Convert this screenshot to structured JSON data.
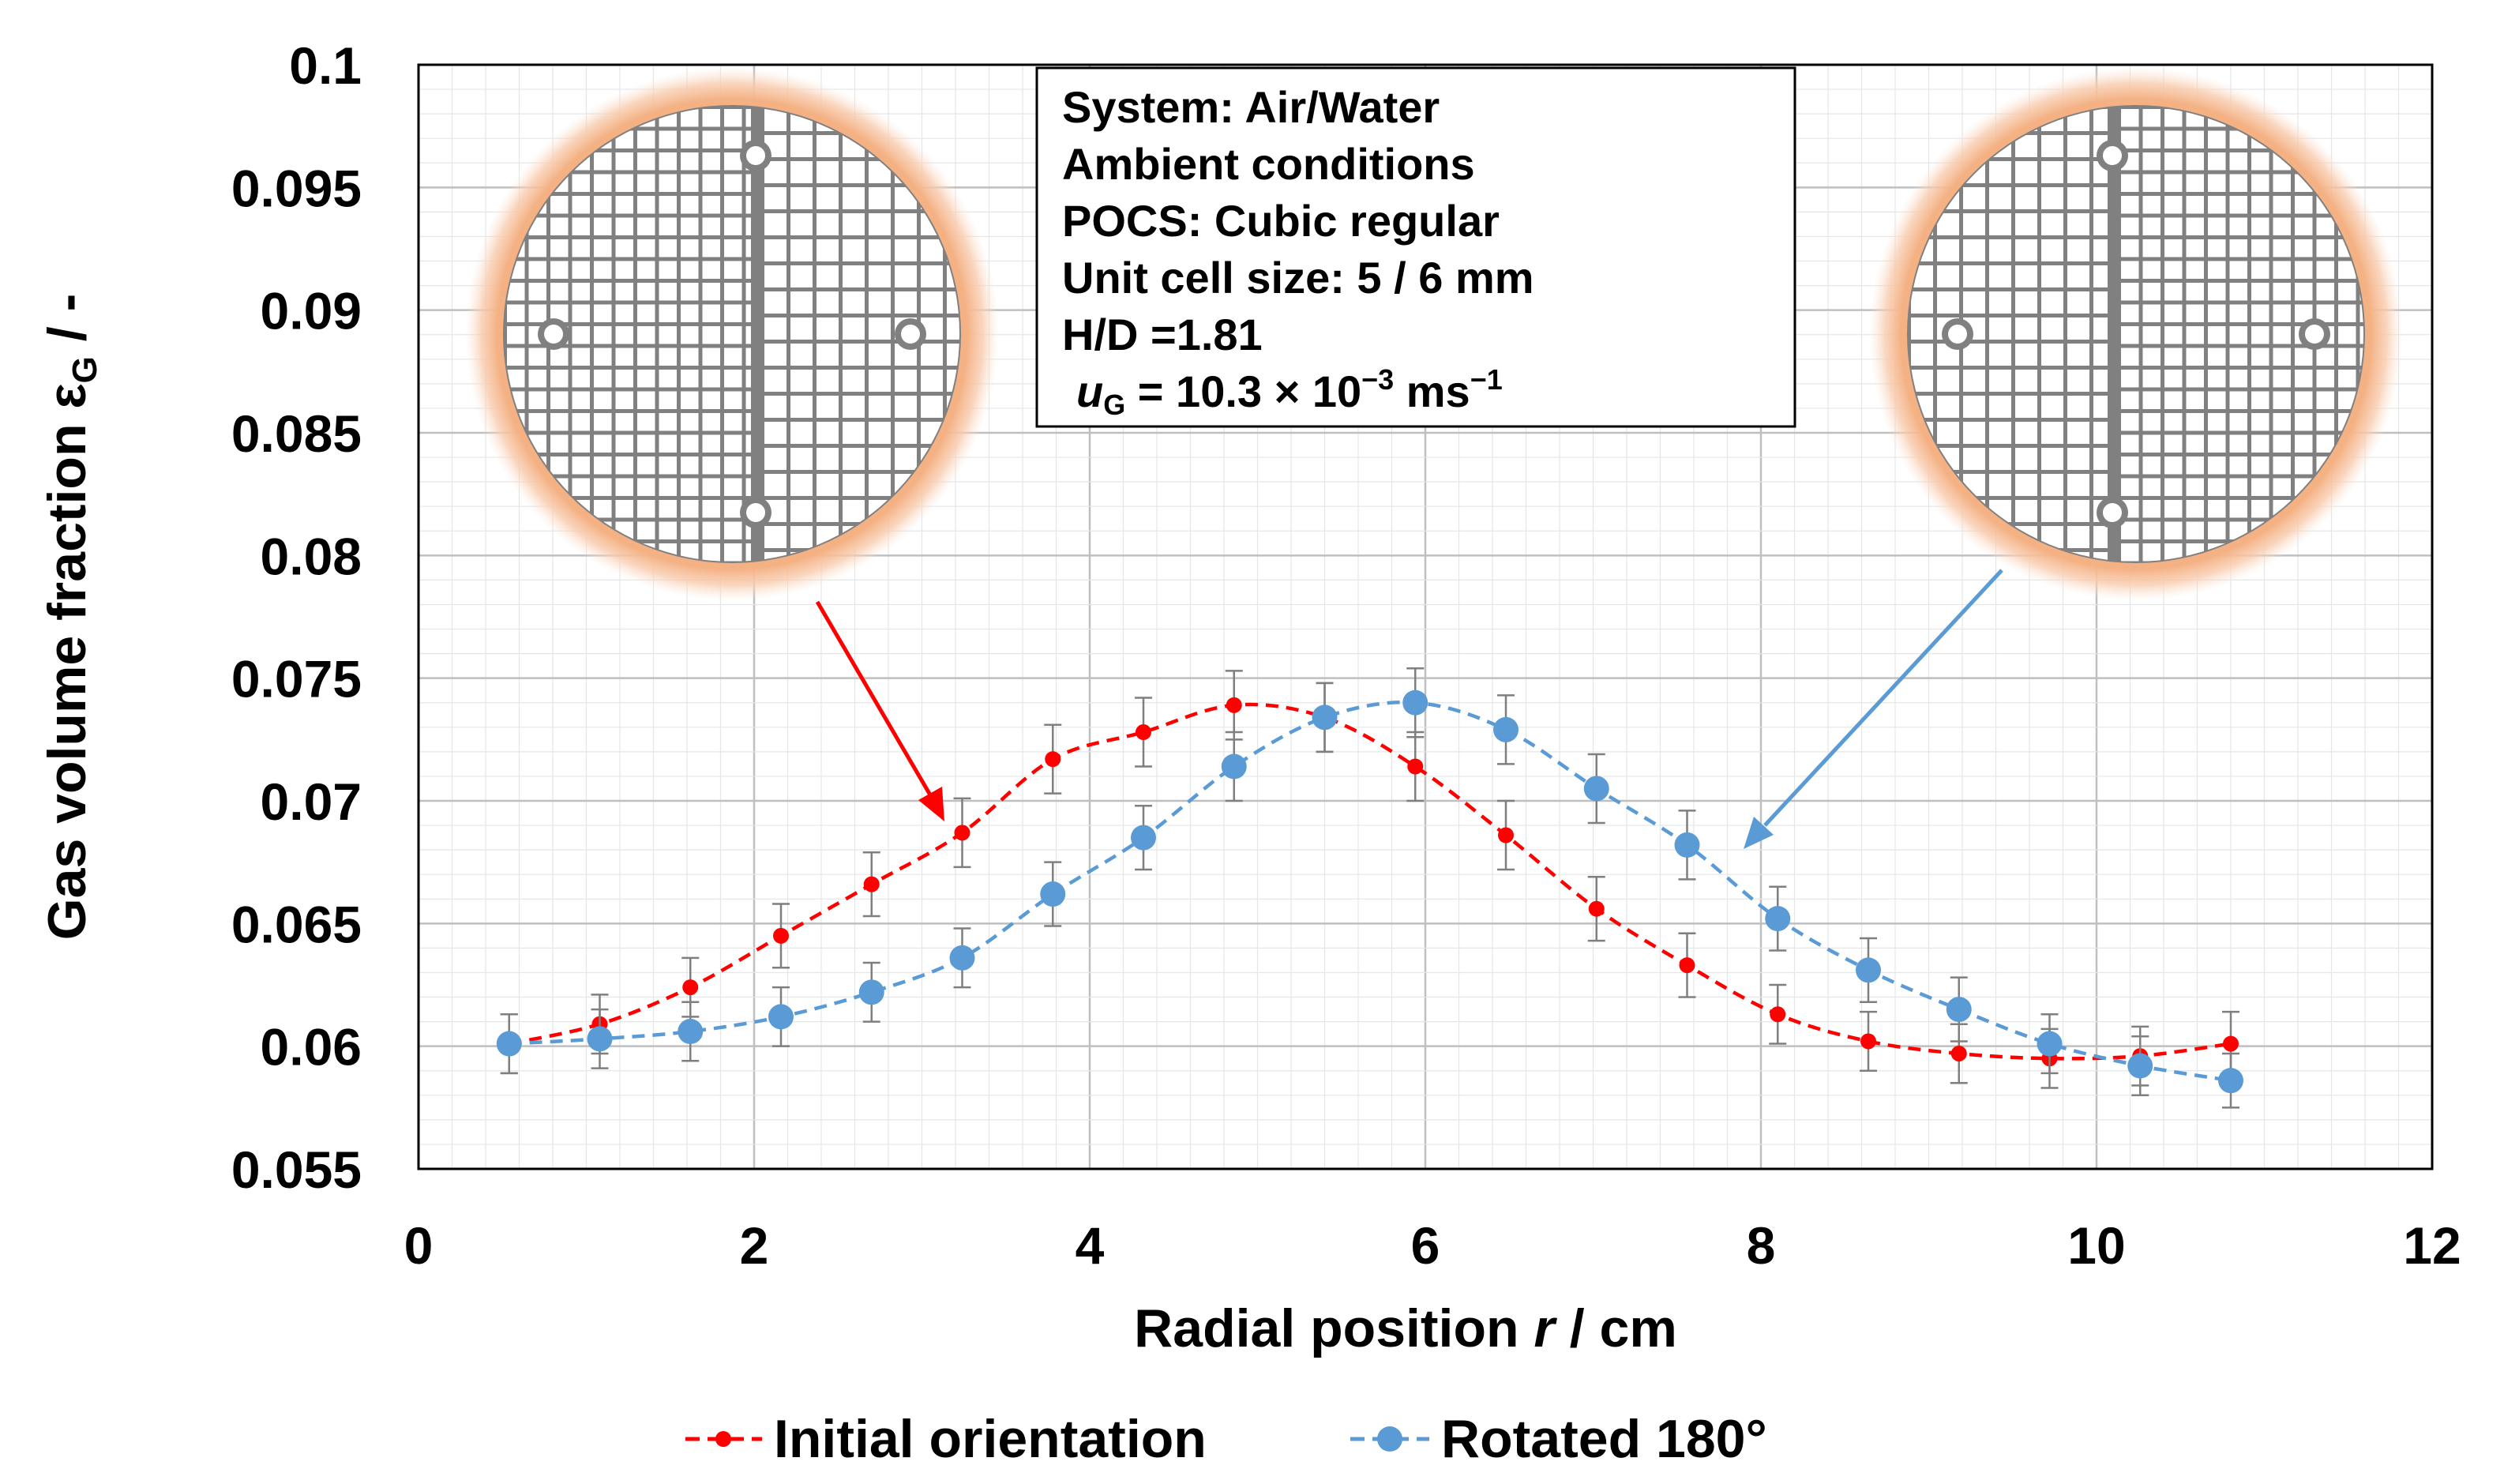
{
  "colors": {
    "initial": "#ff0000",
    "rotated": "#5b9bd5",
    "grid": "#d9d9d9",
    "errorbar": "#7f7f7f",
    "glow": "#f4b183",
    "mesh": "#808080"
  },
  "info_box": {
    "line1": "System: Air/Water",
    "line2": "Ambient conditions",
    "line3": "POCS: Cubic regular",
    "line4": "Unit cell size: 5 / 6 mm",
    "line5": "H/D =1.81",
    "line6_var": "u",
    "line6_sub": "G",
    "line6_rest": " = 10.3 × 10",
    "line6_exp": "−3",
    "line6_unit": " ms",
    "line6_unit_exp": "−1"
  },
  "insets": [
    {
      "name": "inset-initial-orientation",
      "icon": "pocs-cross-section-icon"
    },
    {
      "name": "inset-rotated-180",
      "icon": "pocs-cross-section-icon"
    }
  ],
  "chart_data": {
    "type": "line",
    "xlabel_main": "Radial position ",
    "xlabel_var": "r",
    "xlabel_unit": " / cm",
    "ylabel_main": "Gas volume fraction ",
    "ylabel_sym": "ε",
    "ylabel_sub": "G",
    "ylabel_unit": " / -",
    "xlim": [
      0,
      12
    ],
    "ylim": [
      0.055,
      0.1
    ],
    "xticks": [
      0,
      2,
      4,
      6,
      8,
      10,
      12
    ],
    "xtick_labels": [
      "0",
      "2",
      "4",
      "6",
      "8",
      "10",
      "12"
    ],
    "yticks": [
      0.055,
      0.06,
      0.065,
      0.07,
      0.075,
      0.08,
      0.085,
      0.09,
      0.095,
      0.1
    ],
    "ytick_labels": [
      "0.055",
      "0.06",
      "0.065",
      "0.07",
      "0.075",
      "0.08",
      "0.085",
      "0.09",
      "0.095",
      "0.1"
    ],
    "grid": true,
    "legend_position": "bottom",
    "series": [
      {
        "name": "Initial orientation",
        "x": [
          0.54,
          1.08,
          1.62,
          2.16,
          2.7,
          3.24,
          3.78,
          4.32,
          4.86,
          5.4,
          5.94,
          6.48,
          7.02,
          7.56,
          8.1,
          8.64,
          9.18,
          9.72,
          10.26,
          10.8
        ],
        "y": [
          0.0601,
          0.0609,
          0.0624,
          0.0645,
          0.0666,
          0.0687,
          0.0717,
          0.0728,
          0.0739,
          0.0734,
          0.0714,
          0.0686,
          0.0656,
          0.0633,
          0.0613,
          0.0602,
          0.0597,
          0.0595,
          0.0596,
          0.0601
        ],
        "err": [
          0.0012,
          0.0012,
          0.0012,
          0.0013,
          0.0013,
          0.0014,
          0.0014,
          0.0014,
          0.0014,
          0.0014,
          0.0014,
          0.0014,
          0.0013,
          0.0013,
          0.0012,
          0.0012,
          0.0012,
          0.0012,
          0.0012,
          0.0013
        ]
      },
      {
        "name": "Rotated 180°",
        "x": [
          0.54,
          1.08,
          1.62,
          2.16,
          2.7,
          3.24,
          3.78,
          4.32,
          4.86,
          5.4,
          5.94,
          6.48,
          7.02,
          7.56,
          8.1,
          8.64,
          9.18,
          9.72,
          10.26,
          10.8
        ],
        "y": [
          0.0601,
          0.0603,
          0.0606,
          0.0612,
          0.0622,
          0.0636,
          0.0662,
          0.0685,
          0.0714,
          0.0734,
          0.074,
          0.0729,
          0.0705,
          0.0682,
          0.0652,
          0.0631,
          0.0615,
          0.0601,
          0.0592,
          0.0586
        ],
        "err": [
          0.0012,
          0.0012,
          0.0012,
          0.0012,
          0.0012,
          0.0012,
          0.0013,
          0.0013,
          0.0014,
          0.0014,
          0.0014,
          0.0014,
          0.0014,
          0.0014,
          0.0013,
          0.0013,
          0.0013,
          0.0012,
          0.0012,
          0.0011
        ]
      }
    ]
  }
}
